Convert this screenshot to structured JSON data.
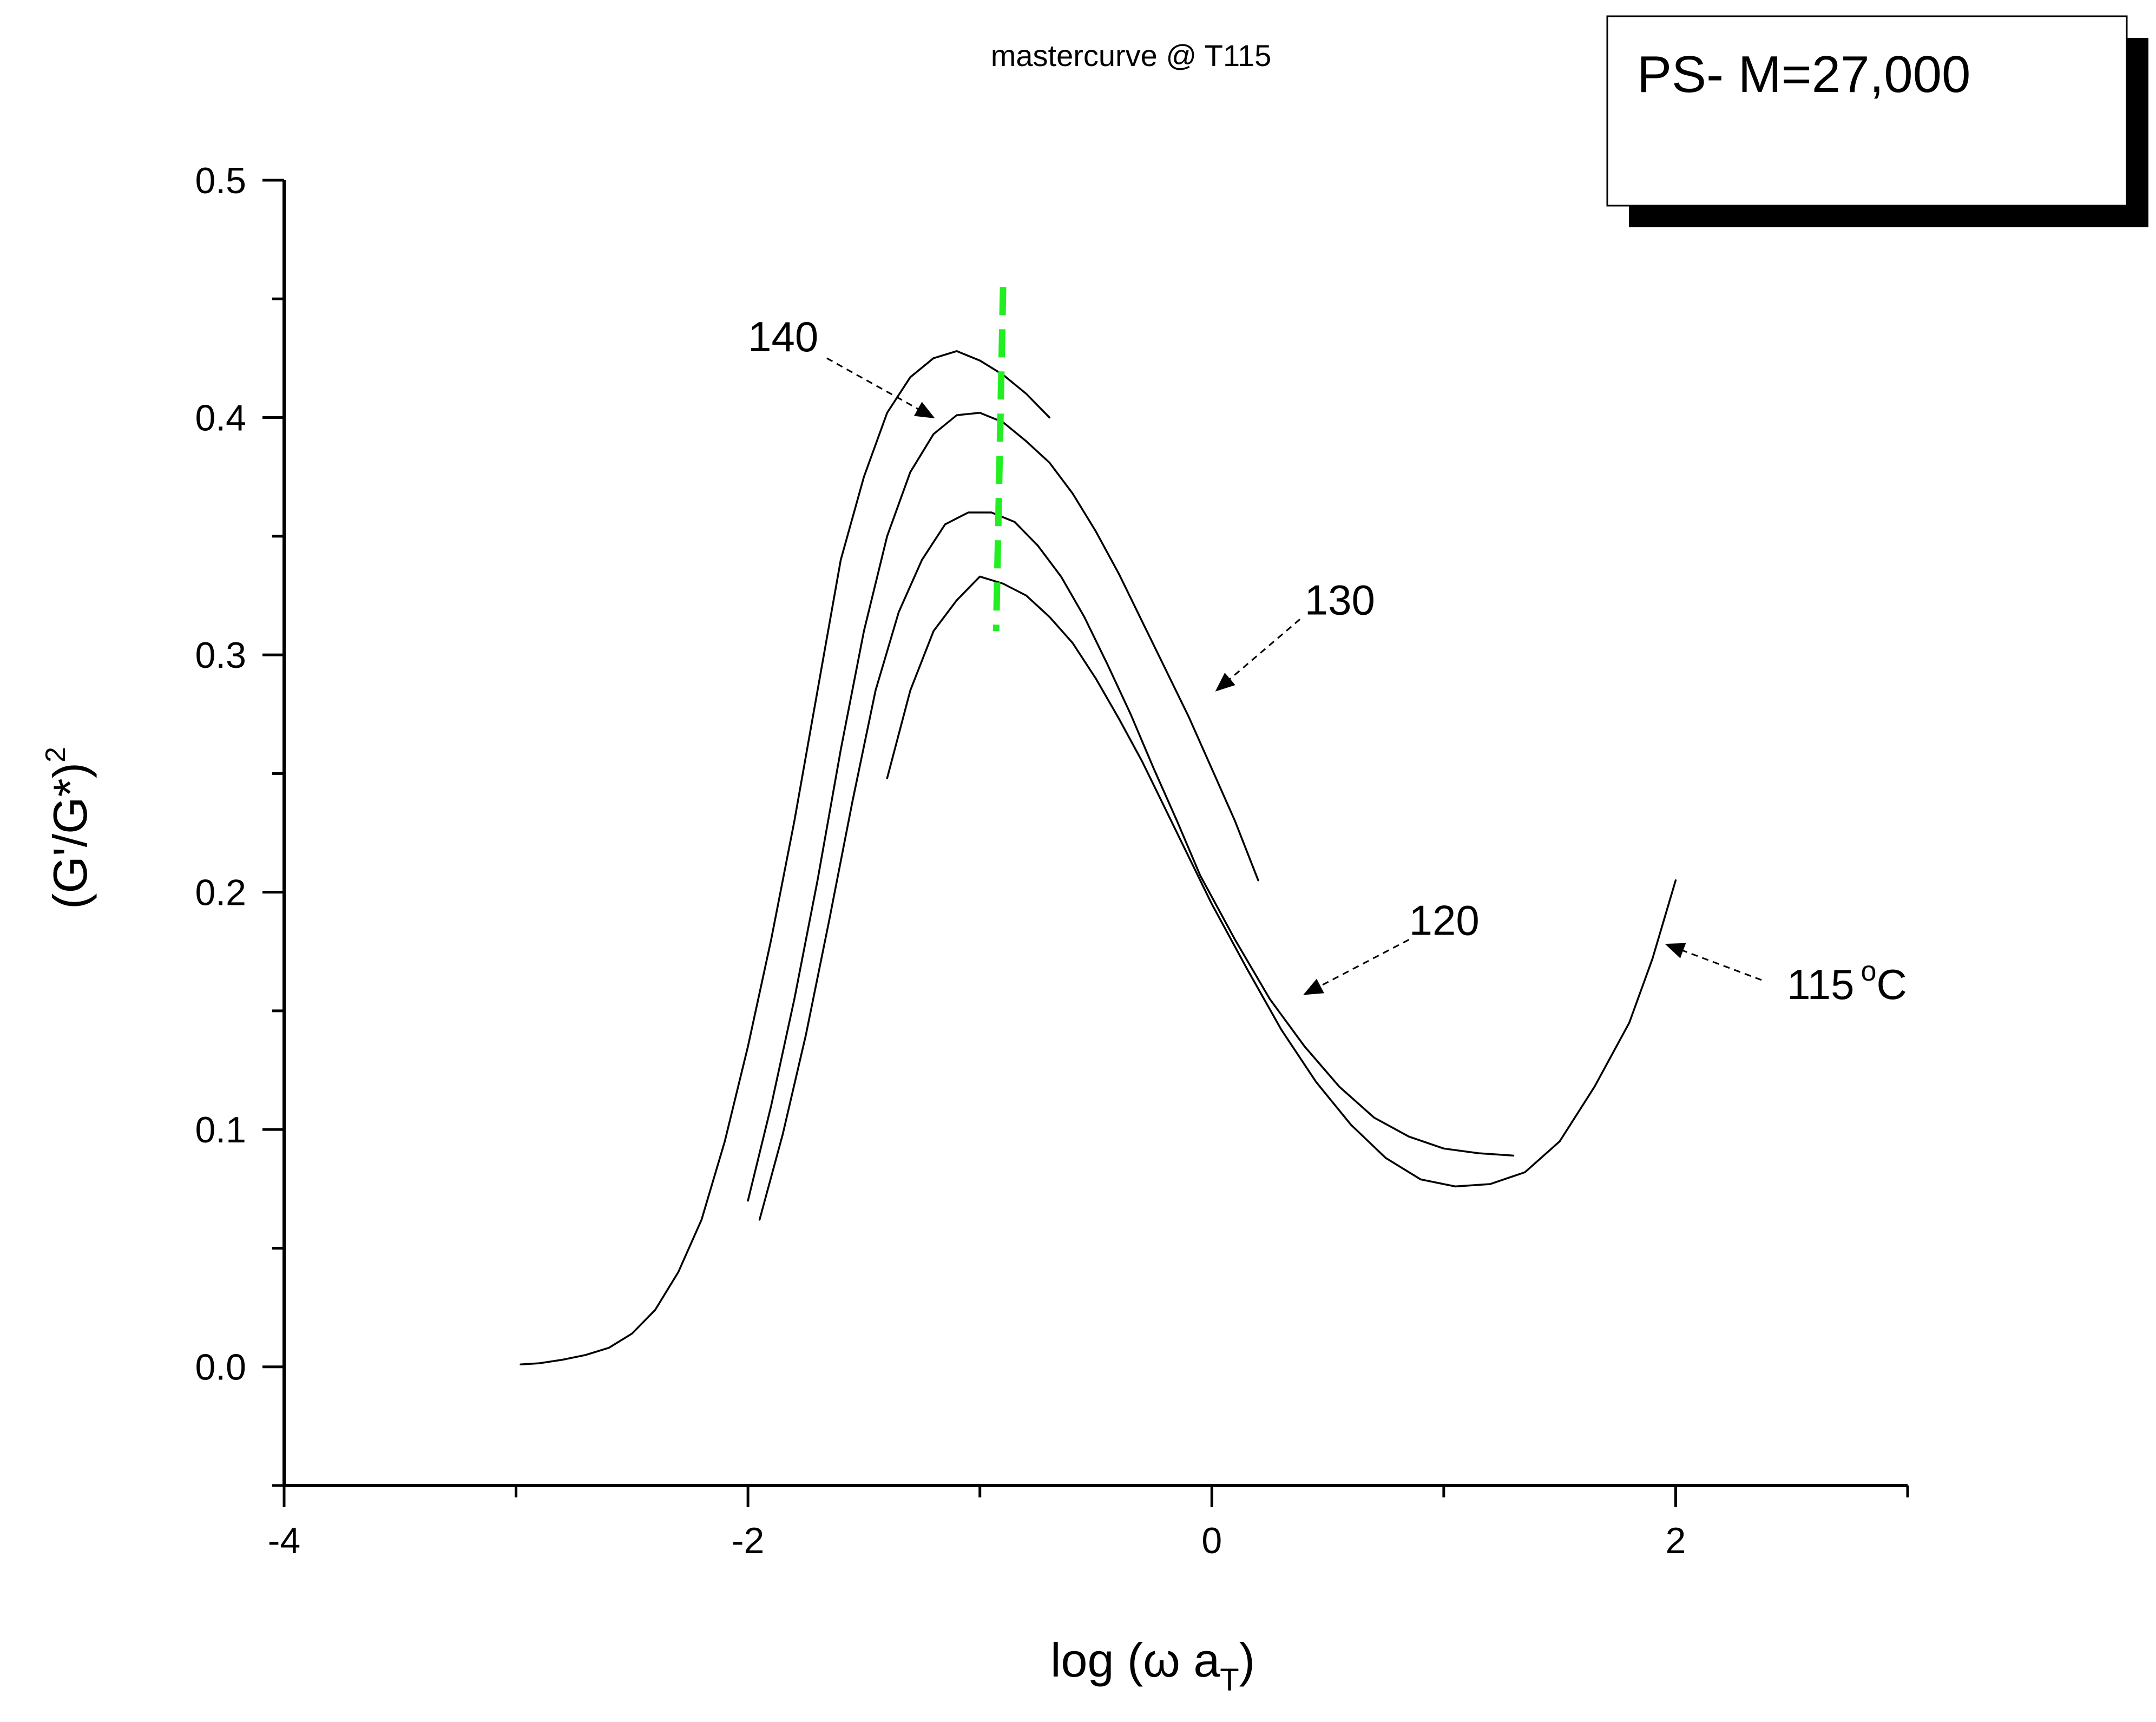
{
  "chart_data": {
    "type": "line",
    "title": "mastercurve @ T115",
    "legend_text": "PS- M=27,000",
    "xlabel": {
      "prefix": "log (",
      "omega": "ω",
      "a": " a",
      "sub": "T",
      "suffix": ")"
    },
    "ylabel": {
      "main": "(G'/G*)",
      "sup": "2"
    },
    "xlim": [
      -4,
      3
    ],
    "ylim": [
      -0.05,
      0.5
    ],
    "xticks": [
      -4,
      -2,
      0,
      2
    ],
    "xtick_labels": [
      "-4",
      "-2",
      "0",
      "2"
    ],
    "yticks": [
      0.0,
      0.1,
      0.2,
      0.3,
      0.4,
      0.5
    ],
    "ytick_labels": [
      "0.0",
      "0.1",
      "0.2",
      "0.3",
      "0.4",
      "0.5"
    ],
    "series": [
      {
        "name": "140",
        "color": "#000000",
        "x": [
          -2.98,
          -2.9,
          -2.8,
          -2.7,
          -2.6,
          -2.5,
          -2.4,
          -2.3,
          -2.2,
          -2.1,
          -2.0,
          -1.9,
          -1.8,
          -1.7,
          -1.6,
          -1.5,
          -1.4,
          -1.3,
          -1.2,
          -1.1,
          -1.0,
          -0.9,
          -0.8,
          -0.7
        ],
        "y": [
          0.001,
          0.0015,
          0.003,
          0.005,
          0.008,
          0.014,
          0.024,
          0.04,
          0.062,
          0.095,
          0.135,
          0.18,
          0.23,
          0.285,
          0.34,
          0.375,
          0.402,
          0.417,
          0.425,
          0.428,
          0.424,
          0.418,
          0.41,
          0.4
        ]
      },
      {
        "name": "130",
        "color": "#000000",
        "x": [
          -2.0,
          -1.9,
          -1.8,
          -1.7,
          -1.6,
          -1.5,
          -1.4,
          -1.3,
          -1.2,
          -1.1,
          -1.0,
          -0.9,
          -0.8,
          -0.7,
          -0.6,
          -0.5,
          -0.4,
          -0.3,
          -0.2,
          -0.1,
          0.0,
          0.1,
          0.2
        ],
        "y": [
          0.07,
          0.11,
          0.155,
          0.205,
          0.26,
          0.31,
          0.35,
          0.377,
          0.393,
          0.401,
          0.402,
          0.398,
          0.39,
          0.381,
          0.368,
          0.352,
          0.334,
          0.314,
          0.294,
          0.274,
          0.252,
          0.23,
          0.205
        ]
      },
      {
        "name": "120",
        "color": "#000000",
        "x": [
          -1.95,
          -1.85,
          -1.75,
          -1.65,
          -1.55,
          -1.45,
          -1.35,
          -1.25,
          -1.15,
          -1.05,
          -0.95,
          -0.85,
          -0.75,
          -0.65,
          -0.55,
          -0.45,
          -0.35,
          -0.25,
          -0.15,
          -0.05,
          0.1,
          0.25,
          0.4,
          0.55,
          0.7,
          0.85,
          1.0,
          1.15,
          1.3
        ],
        "y": [
          0.062,
          0.098,
          0.14,
          0.188,
          0.238,
          0.285,
          0.318,
          0.34,
          0.355,
          0.36,
          0.36,
          0.356,
          0.346,
          0.333,
          0.316,
          0.296,
          0.275,
          0.252,
          0.23,
          0.207,
          0.18,
          0.155,
          0.135,
          0.118,
          0.105,
          0.097,
          0.092,
          0.09,
          0.089
        ]
      },
      {
        "name": "115 °C",
        "color": "#000000",
        "x": [
          -1.4,
          -1.3,
          -1.2,
          -1.1,
          -1.0,
          -0.9,
          -0.8,
          -0.7,
          -0.6,
          -0.5,
          -0.4,
          -0.3,
          -0.2,
          -0.1,
          0.0,
          0.15,
          0.3,
          0.45,
          0.6,
          0.75,
          0.9,
          1.05,
          1.2,
          1.35,
          1.5,
          1.65,
          1.8,
          1.9,
          2.0
        ],
        "y": [
          0.248,
          0.285,
          0.31,
          0.323,
          0.333,
          0.33,
          0.325,
          0.316,
          0.305,
          0.29,
          0.273,
          0.255,
          0.235,
          0.215,
          0.195,
          0.168,
          0.142,
          0.12,
          0.102,
          0.088,
          0.079,
          0.076,
          0.077,
          0.082,
          0.095,
          0.118,
          0.145,
          0.172,
          0.205
        ]
      }
    ],
    "peak_line": {
      "color": "#22ee22",
      "x": [
        -0.9,
        -0.93
      ],
      "y": [
        0.455,
        0.31
      ]
    },
    "annotations": [
      {
        "text": "140",
        "target_series": "140",
        "target": [
          -1.2,
          0.4
        ],
        "text_at": [
          -2.0,
          0.428
        ],
        "arrow_from": [
          -1.66,
          0.425
        ]
      },
      {
        "text": "130",
        "target_series": "130",
        "target": [
          0.02,
          0.285
        ],
        "text_at": [
          0.4,
          0.317
        ],
        "arrow_from": [
          0.38,
          0.315
        ]
      },
      {
        "text": "120",
        "target_series": "120",
        "target": [
          0.4,
          0.157
        ],
        "text_at": [
          0.85,
          0.182
        ],
        "arrow_from": [
          0.85,
          0.18
        ]
      },
      {
        "text": "115",
        "sup": "o",
        "unit": "C",
        "target_series": "115 °C",
        "target": [
          1.96,
          0.178
        ],
        "text_at": [
          2.48,
          0.155
        ],
        "arrow_from": [
          2.37,
          0.163
        ]
      }
    ]
  }
}
